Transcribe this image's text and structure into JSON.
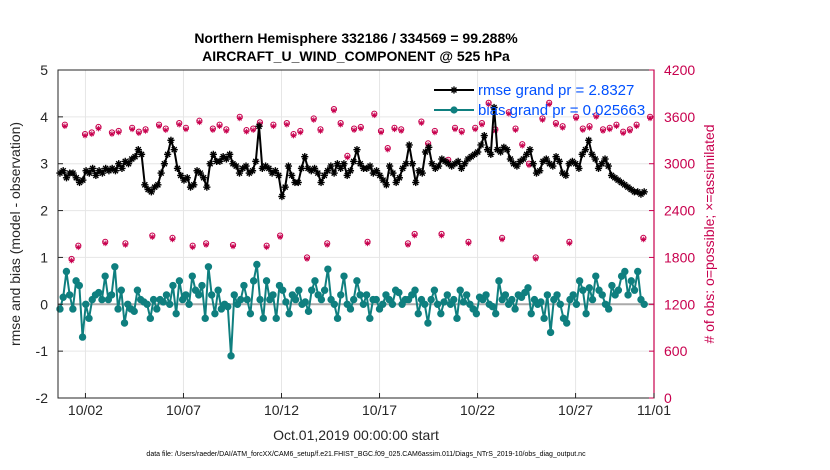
{
  "chart_data": {
    "type": "line",
    "title_line1": "Northern Hemisphere 332186 / 334569 = 99.288%",
    "title_line2": "AIRCRAFT_U_WIND_COMPONENT @ 525 hPa",
    "ylabel_left": "rmse and bias (model - observation)",
    "ylabel_right": "# of obs: o=possible; ×=assimilated",
    "xlabel": "Oct.01,2019 00:00:00 start",
    "footer": "data file: /Users/raeder/DAI/ATM_forcXX/CAM6_setup/f.e21.FHIST_BGC.f09_025.CAM6assim.011/Diags_NTrS_2019-10/obs_diag_output.nc",
    "xlim": [
      0.6,
      31.0
    ],
    "ylim_left": [
      -2,
      5
    ],
    "ylim_right": [
      0,
      4200
    ],
    "left_ticks": [
      -2,
      -1,
      0,
      1,
      2,
      3,
      4,
      5
    ],
    "right_ticks": [
      0,
      600,
      1200,
      1800,
      2400,
      3000,
      3600,
      4200
    ],
    "x_ticks": [
      {
        "day": 2,
        "label": "10/02"
      },
      {
        "day": 7,
        "label": "10/07"
      },
      {
        "day": 12,
        "label": "10/12"
      },
      {
        "day": 17,
        "label": "10/17"
      },
      {
        "day": 22,
        "label": "10/22"
      },
      {
        "day": 27,
        "label": "10/27"
      },
      {
        "day": 32,
        "label": "11/01"
      }
    ],
    "grid": true,
    "legend_position": "top-right",
    "colors": {
      "rmse": "#000000",
      "bias": "#0f7f7f",
      "obs": "#c8004e",
      "legend_text": "#0050ff",
      "zero_line": "#aaaaaa"
    },
    "series": [
      {
        "name": "rmse grand pr = 2.8327",
        "axis": "left",
        "marker": "asterisk",
        "values": [
          2.8,
          2.85,
          2.7,
          2.8,
          2.8,
          2.7,
          2.6,
          2.65,
          2.85,
          2.8,
          2.9,
          2.75,
          2.85,
          2.8,
          2.9,
          2.85,
          2.9,
          2.85,
          3.0,
          2.9,
          3.05,
          3.0,
          3.1,
          3.15,
          3.3,
          3.2,
          2.55,
          2.45,
          2.4,
          2.5,
          2.55,
          2.8,
          3.0,
          3.2,
          3.5,
          3.3,
          2.9,
          2.75,
          2.65,
          2.7,
          2.5,
          2.55,
          2.85,
          2.8,
          2.7,
          2.5,
          3.0,
          3.2,
          3.05,
          3.05,
          3.15,
          3.1,
          3.2,
          3.0,
          2.95,
          2.8,
          2.9,
          2.95,
          2.8,
          2.85,
          3.05,
          3.8,
          2.9,
          2.95,
          2.9,
          2.8,
          2.85,
          2.75,
          2.3,
          2.5,
          2.95,
          2.75,
          2.6,
          2.6,
          2.9,
          3.15,
          2.9,
          2.85,
          2.9,
          2.8,
          2.6,
          2.75,
          2.85,
          2.95,
          2.8,
          3.0,
          2.9,
          3.0,
          2.75,
          2.85,
          3.05,
          3.3,
          3.0,
          2.9,
          2.9,
          2.95,
          2.8,
          2.85,
          2.75,
          2.65,
          2.55,
          2.95,
          2.8,
          2.6,
          2.7,
          2.9,
          3.0,
          3.4,
          3.0,
          2.6,
          2.85,
          2.8,
          3.25,
          3.35,
          3.0,
          2.9,
          2.95,
          3.1,
          3.05,
          3.0,
          2.95,
          3.0,
          3.05,
          2.9,
          3.0,
          3.1,
          3.15,
          3.2,
          3.25,
          3.4,
          3.6,
          3.3,
          3.2,
          4.2,
          3.3,
          3.25,
          3.35,
          3.3,
          3.1,
          3.0,
          2.95,
          3.05,
          3.1,
          3.2,
          3.3,
          3.0,
          2.8,
          2.85,
          3.05,
          3.1,
          3.0,
          2.95,
          3.15,
          3.05,
          2.8,
          2.75,
          3.0,
          3.05,
          3.0,
          2.9,
          3.2,
          3.3,
          3.5,
          3.2,
          3.1,
          2.9,
          3.0,
          3.1,
          2.95,
          2.75,
          2.7,
          2.65,
          2.6,
          2.55,
          2.5,
          2.45,
          2.4,
          2.4,
          2.35,
          2.4
        ]
      },
      {
        "name": "bias grand pr = 0.025663",
        "axis": "left",
        "marker": "circle",
        "values": [
          -0.1,
          0.15,
          0.7,
          0.2,
          -0.1,
          0.5,
          0.4,
          -0.7,
          0.0,
          -0.3,
          0.1,
          0.2,
          0.25,
          0.1,
          0.6,
          0.1,
          0.2,
          0.8,
          -0.1,
          0.3,
          -0.4,
          0.0,
          -0.1,
          -0.15,
          0.3,
          0.1,
          0.05,
          0.0,
          -0.3,
          0.1,
          -0.1,
          0.1,
          0.05,
          0.2,
          0.0,
          0.4,
          -0.2,
          0.5,
          0.1,
          0.2,
          0.0,
          0.6,
          0.3,
          0.2,
          0.4,
          -0.3,
          0.8,
          0.2,
          -0.2,
          0.3,
          -0.1,
          0.0,
          -0.05,
          -1.1,
          0.2,
          0.0,
          0.1,
          0.4,
          0.1,
          -0.2,
          0.5,
          0.85,
          0.1,
          -0.3,
          0.5,
          0.1,
          0.2,
          -0.3,
          0.4,
          0.3,
          0.05,
          -0.2,
          0.2,
          0.1,
          0.3,
          0.0,
          0.05,
          -0.15,
          0.3,
          0.5,
          0.2,
          0.1,
          0.3,
          0.75,
          0.1,
          0.0,
          -0.3,
          0.2,
          0.6,
          0.0,
          -0.1,
          0.1,
          0.5,
          0.2,
          0.0,
          0.2,
          -0.3,
          0.1,
          0.1,
          -0.1,
          0.0,
          0.2,
          0.1,
          0.0,
          0.3,
          0.25,
          0.0,
          0.1,
          0.1,
          0.2,
          0.3,
          -0.2,
          0.1,
          0.0,
          -0.4,
          0.1,
          0.3,
          0.0,
          -0.2,
          0.05,
          0.2,
          0.0,
          0.1,
          -0.3,
          0.3,
          0.05,
          0.2,
          0.0,
          -0.1,
          -0.2,
          0.15,
          0.1,
          0.2,
          0.0,
          -0.05,
          -0.2,
          0.5,
          0.1,
          0.2,
          0.0,
          0.1,
          -0.1,
          0.2,
          0.15,
          0.25,
          0.35,
          -0.2,
          0.1,
          0.0,
          0.05,
          -0.3,
          0.2,
          -0.6,
          0.1,
          0.2,
          0.0,
          -0.3,
          -0.4,
          0.1,
          0.2,
          0.0,
          0.5,
          0.3,
          -0.2,
          0.35,
          0.1,
          0.6,
          0.3,
          0.2,
          0.0,
          -0.1,
          0.4,
          0.2,
          0.3,
          0.6,
          0.7,
          0.2,
          0.5,
          0.3,
          0.7,
          0.1,
          0.0
        ]
      },
      {
        "name": "obs possible",
        "axis": "right",
        "marker": "open-circle",
        "values": [
          3500,
          1780,
          1950,
          3380,
          3400,
          3470,
          2000,
          3400,
          3420,
          1980,
          3460,
          3410,
          3440,
          2080,
          3500,
          3450,
          2050,
          3520,
          3460,
          1950,
          3550,
          1980,
          3450,
          3500,
          3440,
          1960,
          3600,
          3430,
          3450,
          3530,
          1950,
          3500,
          2080,
          3520,
          3380,
          3420,
          1800,
          3580,
          3440,
          1980,
          3700,
          3520,
          3100,
          3450,
          3470,
          2000,
          3640,
          3420,
          3200,
          3460,
          3440,
          1980,
          2100,
          3540,
          3260,
          3420,
          2100,
          3050,
          3460,
          3420,
          2000,
          3460,
          3520,
          3780,
          3440,
          2050,
          3660,
          3450,
          3250,
          3000,
          1800,
          3580,
          3780,
          3520,
          3480,
          2000,
          3600,
          3450,
          3480,
          3620,
          3440,
          3460,
          3500,
          3410,
          3440,
          3500,
          2050,
          3600
        ]
      },
      {
        "name": "obs assimilated",
        "axis": "right",
        "marker": "asterisk",
        "values": [
          3480,
          1760,
          1930,
          3360,
          3380,
          3450,
          1980,
          3380,
          3400,
          1960,
          3440,
          3390,
          3420,
          2060,
          3480,
          3430,
          2030,
          3500,
          3440,
          1930,
          3530,
          1960,
          3430,
          3480,
          3420,
          1940,
          3580,
          3410,
          3430,
          3510,
          1930,
          3480,
          2060,
          3500,
          3360,
          3400,
          1780,
          3560,
          3420,
          1960,
          3680,
          3500,
          3080,
          3430,
          3450,
          1980,
          3620,
          3400,
          3180,
          3440,
          3420,
          1960,
          2080,
          3520,
          3240,
          3400,
          2080,
          3030,
          3440,
          3400,
          1980,
          3440,
          3500,
          3760,
          3420,
          2030,
          3640,
          3430,
          3230,
          2980,
          1780,
          3560,
          3760,
          3500,
          3460,
          1980,
          3580,
          3430,
          3460,
          3600,
          3420,
          3440,
          3480,
          3390,
          3420,
          3480,
          2030,
          3580
        ]
      }
    ]
  }
}
